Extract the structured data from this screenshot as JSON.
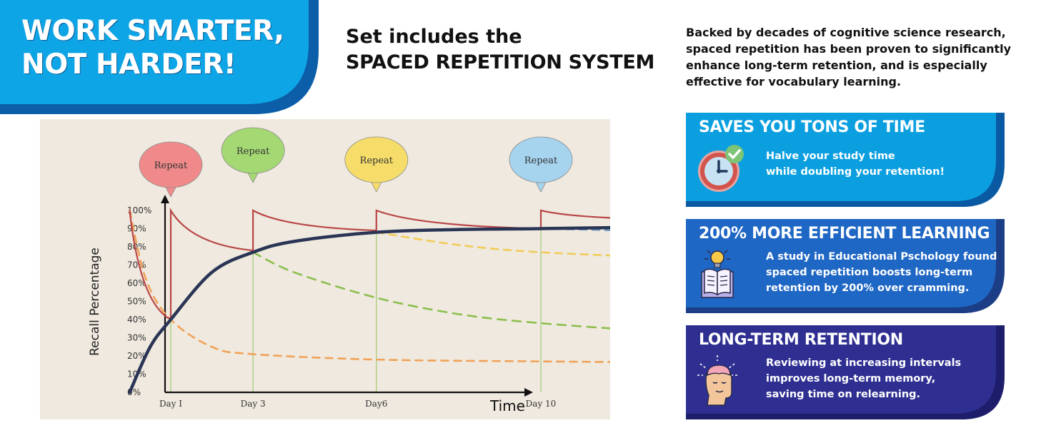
{
  "banner": {
    "line1": "WORK SMARTER,",
    "line2": "NOT HARDER!"
  },
  "headline": {
    "line1": "Set includes the",
    "line2": "SPACED REPETITION SYSTEM"
  },
  "intro": {
    "lines": [
      "Backed by decades of cognitive science research,",
      "spaced repetition has been proven to significantly",
      "enhance long-term retention, and is especially",
      "effective for vocabulary learning."
    ]
  },
  "cards": [
    {
      "title": "SAVES YOU TONS OF TIME",
      "icon": "clock-check-icon",
      "color": "#0b9fe0",
      "lines": [
        "Halve your study time",
        "while doubling your retention!"
      ]
    },
    {
      "title": "200% MORE EFFICIENT LEARNING",
      "icon": "book-lightbulb-icon",
      "color": "#1f67c4",
      "lines": [
        "A study in Educational Pschology found",
        "spaced repetition boosts long-term",
        "retention by 200% over cramming."
      ]
    },
    {
      "title": "LONG-TERM RETENTION",
      "icon": "brain-head-icon",
      "color": "#2f2f92",
      "lines": [
        "Reviewing at increasing intervals",
        "improves long-term memory,",
        "saving time on relearning."
      ]
    }
  ],
  "chart_data": {
    "type": "line",
    "ylabel": "Recall Percentage",
    "xlabel": "Time",
    "ylim": [
      0,
      100
    ],
    "yticks": [
      "0%",
      "10%",
      "20%",
      "30%",
      "40%",
      "50%",
      "60%",
      "70%",
      "80%",
      "90%",
      "100%"
    ],
    "xticks": [
      {
        "label": "Day I",
        "x": 1
      },
      {
        "label": "Day 3",
        "x": 3
      },
      {
        "label": "Day6",
        "x": 6
      },
      {
        "label": "Day 10",
        "x": 10
      }
    ],
    "xlim": [
      -0.2,
      14
    ],
    "bubbles": [
      {
        "label": "Repeat",
        "x": 1,
        "color": "#f08a8a"
      },
      {
        "label": "Repeat",
        "x": 3,
        "color": "#a4d873"
      },
      {
        "label": "Repeat",
        "x": 6,
        "color": "#f6dd6a"
      },
      {
        "label": "Repeat",
        "x": 10,
        "color": "#a6d3ee"
      }
    ],
    "colors": {
      "sawtooth": "#b94646",
      "learning": "#2a3555",
      "orange": "#f0a257",
      "green": "#8cbf4e",
      "yellow": "#f2cc58",
      "blue": "#6e98bd",
      "gridline": "#a8cc7a"
    },
    "series": [
      {
        "style": "sawtooth",
        "points": [
          [
            0,
            100
          ],
          [
            1,
            40
          ],
          [
            1,
            100
          ],
          [
            3,
            78
          ],
          [
            3,
            100
          ],
          [
            6,
            89
          ],
          [
            6,
            100
          ],
          [
            10,
            90
          ],
          [
            10,
            100
          ],
          [
            13.1,
            95
          ]
        ]
      },
      {
        "style": "learning",
        "points": [
          [
            0,
            0
          ],
          [
            0.5,
            25
          ],
          [
            1,
            40
          ],
          [
            2,
            66
          ],
          [
            3,
            77
          ],
          [
            4,
            83
          ],
          [
            6,
            88
          ],
          [
            8,
            89.5
          ],
          [
            10,
            90
          ],
          [
            13.1,
            91
          ]
        ]
      },
      {
        "style": "orange-dashed",
        "points": [
          [
            0,
            100
          ],
          [
            0.4,
            62
          ],
          [
            1,
            40
          ],
          [
            2,
            25
          ],
          [
            3,
            21
          ],
          [
            6,
            18
          ],
          [
            10,
            17
          ],
          [
            13.1,
            16.5
          ]
        ]
      },
      {
        "style": "green-dashed",
        "points": [
          [
            3,
            77
          ],
          [
            4,
            66
          ],
          [
            6,
            52
          ],
          [
            8,
            43
          ],
          [
            10,
            38
          ],
          [
            13.1,
            33
          ]
        ]
      },
      {
        "style": "yellow-dashed",
        "points": [
          [
            6,
            88
          ],
          [
            8,
            81
          ],
          [
            10,
            77
          ],
          [
            13.1,
            74
          ]
        ]
      },
      {
        "style": "blue-dashed",
        "points": [
          [
            10,
            90
          ],
          [
            13.1,
            88.5
          ]
        ]
      }
    ]
  }
}
